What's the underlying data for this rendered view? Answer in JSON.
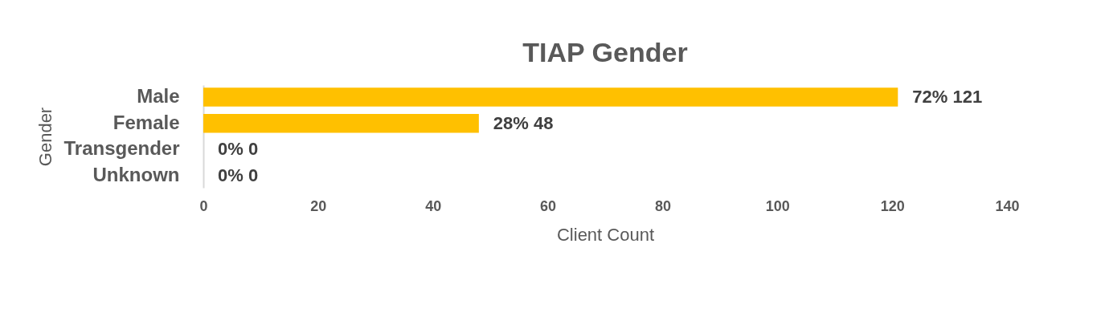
{
  "chart_data": {
    "type": "bar",
    "orientation": "horizontal",
    "title": "TIAP Gender",
    "xlabel": "Client Count",
    "ylabel": "Gender",
    "categories": [
      "Male",
      "Female",
      "Transgender",
      "Unknown"
    ],
    "values": [
      121,
      48,
      0,
      0
    ],
    "value_labels": [
      "72%  121",
      "28%  48",
      "0%  0",
      "0%  0"
    ],
    "color": "#ffc000",
    "xlim": [
      0,
      140
    ],
    "xticks": [
      0,
      20,
      40,
      60,
      80,
      100,
      120,
      140
    ]
  }
}
